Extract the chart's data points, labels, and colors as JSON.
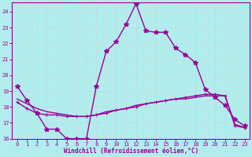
{
  "title": "",
  "xlabel": "Windchill (Refroidissement éolien,°C)",
  "ylabel": "",
  "bg_color": "#b2eded",
  "grid_color": "#c8e8e8",
  "line_color": "#990099",
  "xlim": [
    -0.5,
    23.5
  ],
  "ylim": [
    16,
    24.6
  ],
  "yticks": [
    16,
    17,
    18,
    19,
    20,
    21,
    22,
    23,
    24
  ],
  "xticks": [
    0,
    1,
    2,
    3,
    4,
    5,
    6,
    7,
    8,
    9,
    10,
    11,
    12,
    13,
    14,
    15,
    16,
    17,
    18,
    19,
    20,
    21,
    22,
    23
  ],
  "line1_x": [
    0,
    1,
    2,
    3,
    4,
    5,
    6,
    7,
    8,
    9,
    10,
    11,
    12,
    13,
    14,
    15,
    16,
    17,
    18,
    19,
    20,
    21,
    22,
    23
  ],
  "line1_y": [
    19.3,
    18.4,
    17.6,
    16.6,
    16.6,
    16.0,
    16.0,
    16.0,
    19.3,
    21.5,
    22.1,
    23.2,
    24.5,
    22.8,
    22.7,
    22.7,
    21.7,
    21.3,
    20.8,
    19.1,
    18.6,
    18.1,
    17.2,
    16.8
  ],
  "line2_x": [
    0,
    1,
    2,
    3,
    4,
    5,
    6,
    7,
    8,
    9,
    10,
    11,
    12,
    13,
    14,
    15,
    16,
    17,
    18,
    19,
    20,
    21,
    22,
    23
  ],
  "line2_y": [
    18.3,
    17.9,
    17.6,
    17.5,
    17.5,
    17.4,
    17.4,
    17.4,
    17.5,
    17.6,
    17.8,
    17.9,
    18.0,
    18.2,
    18.3,
    18.4,
    18.5,
    18.6,
    18.7,
    18.8,
    18.8,
    18.7,
    16.8,
    16.7
  ],
  "line3_x": [
    0,
    1,
    2,
    3,
    4,
    5,
    6,
    7,
    8,
    9,
    10,
    11,
    12,
    13,
    14,
    15,
    16,
    17,
    18,
    19,
    20,
    21,
    22,
    23
  ],
  "line3_y": [
    18.5,
    18.2,
    17.9,
    17.7,
    17.6,
    17.5,
    17.4,
    17.4,
    17.5,
    17.7,
    17.8,
    17.9,
    18.1,
    18.2,
    18.3,
    18.4,
    18.5,
    18.5,
    18.6,
    18.7,
    18.7,
    18.7,
    16.9,
    16.7
  ]
}
